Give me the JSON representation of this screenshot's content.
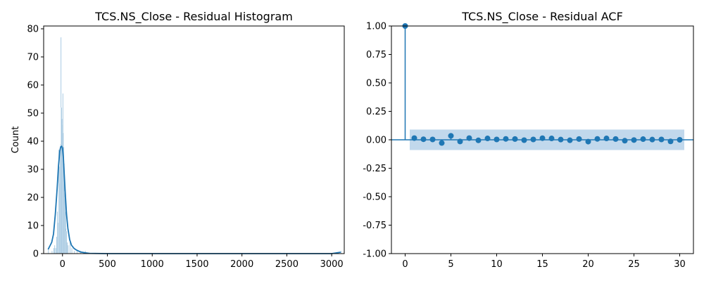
{
  "chart_data": [
    {
      "type": "histogram",
      "title": "TCS.NS_Close - Residual Histogram",
      "xlabel": "",
      "ylabel": "Count",
      "xlim": [
        -210,
        3140
      ],
      "ylim": [
        0,
        81
      ],
      "xticks": [
        0,
        500,
        1000,
        1500,
        2000,
        2500,
        3000
      ],
      "yticks": [
        0,
        10,
        20,
        30,
        40,
        50,
        60,
        70,
        80
      ],
      "bar_color": "#1f77b4",
      "bins": [
        {
          "x": -160,
          "count": 2
        },
        {
          "x": -140,
          "count": 0
        },
        {
          "x": -120,
          "count": 1
        },
        {
          "x": -100,
          "count": 2
        },
        {
          "x": -90,
          "count": 3
        },
        {
          "x": -80,
          "count": 2
        },
        {
          "x": -70,
          "count": 6
        },
        {
          "x": -60,
          "count": 15
        },
        {
          "x": -50,
          "count": 11
        },
        {
          "x": -45,
          "count": 37
        },
        {
          "x": -40,
          "count": 25
        },
        {
          "x": -35,
          "count": 31
        },
        {
          "x": -30,
          "count": 36
        },
        {
          "x": -25,
          "count": 39
        },
        {
          "x": -20,
          "count": 77
        },
        {
          "x": -15,
          "count": 52
        },
        {
          "x": -10,
          "count": 48
        },
        {
          "x": -5,
          "count": 46
        },
        {
          "x": 0,
          "count": 57
        },
        {
          "x": 5,
          "count": 43
        },
        {
          "x": 10,
          "count": 38
        },
        {
          "x": 15,
          "count": 32
        },
        {
          "x": 20,
          "count": 22
        },
        {
          "x": 25,
          "count": 20
        },
        {
          "x": 30,
          "count": 15
        },
        {
          "x": 35,
          "count": 9
        },
        {
          "x": 40,
          "count": 8
        },
        {
          "x": 50,
          "count": 4
        },
        {
          "x": 60,
          "count": 3
        },
        {
          "x": 80,
          "count": 4
        },
        {
          "x": 100,
          "count": 2
        },
        {
          "x": 130,
          "count": 1
        },
        {
          "x": 160,
          "count": 1
        },
        {
          "x": 200,
          "count": 1
        },
        {
          "x": 250,
          "count": 1
        },
        {
          "x": 3100,
          "count": 1
        }
      ],
      "kde": {
        "x": [
          -160,
          -120,
          -100,
          -80,
          -60,
          -45,
          -30,
          -20,
          -10,
          0,
          10,
          20,
          30,
          45,
          60,
          80,
          100,
          130,
          160,
          200,
          250,
          300,
          500,
          1000,
          1500,
          2000,
          2500,
          3000,
          3100
        ],
        "y": [
          1.5,
          4,
          7,
          14,
          23,
          31,
          36.5,
          38,
          38.2,
          37.5,
          34,
          28,
          22,
          14,
          9,
          5,
          3,
          1.8,
          1.2,
          0.6,
          0.3,
          0.1,
          0,
          0,
          0,
          0,
          0,
          0,
          0.5
        ]
      }
    },
    {
      "type": "stem",
      "title": "TCS.NS_Close - Residual ACF",
      "xlabel": "",
      "ylabel": "",
      "xlim": [
        -1.5,
        31.5
      ],
      "ylim": [
        -1.0,
        1.0
      ],
      "xticks": [
        0,
        5,
        10,
        15,
        20,
        25,
        30
      ],
      "yticks": [
        "1.00",
        "0.75",
        "0.50",
        "0.25",
        "0.00",
        "-0.25",
        "-0.50",
        "-0.75",
        "-1.00"
      ],
      "color": "#1f77b4",
      "confidence_band": {
        "x_start": 0.5,
        "x_end": 30.5,
        "lower": -0.09,
        "upper": 0.09,
        "color": "#a6c8e4"
      },
      "lags": [
        0,
        1,
        2,
        3,
        4,
        5,
        6,
        7,
        8,
        9,
        10,
        11,
        12,
        13,
        14,
        15,
        16,
        17,
        18,
        19,
        20,
        21,
        22,
        23,
        24,
        25,
        26,
        27,
        28,
        29,
        30
      ],
      "values": [
        1.0,
        0.015,
        0.005,
        0.003,
        -0.028,
        0.035,
        -0.015,
        0.015,
        -0.005,
        0.012,
        0.003,
        0.008,
        0.007,
        -0.003,
        0.003,
        0.014,
        0.012,
        0.002,
        -0.004,
        0.007,
        -0.016,
        0.008,
        0.012,
        0.007,
        -0.008,
        -0.002,
        0.006,
        0.002,
        0.003,
        -0.014,
        0.0
      ]
    }
  ]
}
